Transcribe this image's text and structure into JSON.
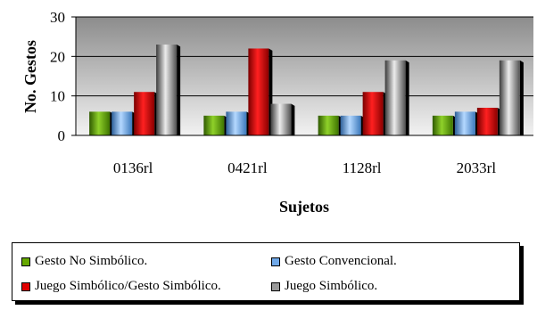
{
  "chart_data": {
    "type": "bar",
    "title": "",
    "xlabel": "Sujetos",
    "ylabel": "No. Gestos",
    "ylim": [
      0,
      30
    ],
    "yticks": [
      0,
      10,
      20,
      30
    ],
    "grid": true,
    "legend_position": "bottom",
    "categories": [
      "0136rl",
      "0421rl",
      "1128rl",
      "2033rl"
    ],
    "series": [
      {
        "name": "Gesto No Simbólico.",
        "color": "#66a800",
        "values": [
          6,
          5,
          5,
          5
        ]
      },
      {
        "name": "Gesto Convencional.",
        "color": "#6fa8e8",
        "values": [
          6,
          6,
          5,
          6
        ]
      },
      {
        "name": "Juego Simbólico/Gesto Simbólico.",
        "color": "#e00000",
        "values": [
          11,
          22,
          11,
          7
        ]
      },
      {
        "name": "Juego Simbólico.",
        "color": "#9a9a9a",
        "values": [
          23,
          8,
          19,
          19
        ]
      }
    ]
  }
}
